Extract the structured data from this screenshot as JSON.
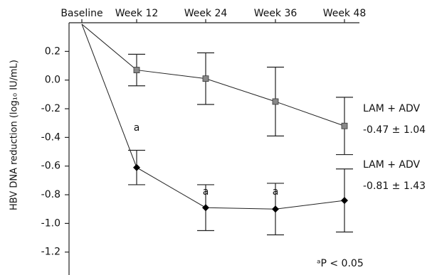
{
  "chart_data": {
    "type": "line",
    "y_label": "HBV DNA reduction (log₁₀ IU/mL)",
    "categories": [
      "Baseline",
      "Week 12",
      "Week 24",
      "Week 36",
      "Week 48"
    ],
    "ylim": [
      -1.35,
      0.4
    ],
    "yticks": [
      0.2,
      {
        "value": 0,
        "label": "0.0"
      },
      -0.2,
      -0.4,
      -0.6,
      -0.8,
      {
        "value": -1,
        "label": "-1.0"
      },
      -1.2
    ],
    "series": [
      {
        "name": "LAM + ADV",
        "marker": "square",
        "color": "#888888",
        "values": [
          0.39,
          0.07,
          0.01,
          -0.15,
          -0.32
        ],
        "errors": [
          null,
          0.11,
          0.18,
          0.24,
          0.2
        ]
      },
      {
        "name": "LAM + ADV",
        "marker": "diamond",
        "color": "#000000",
        "values": [
          0.39,
          -0.61,
          -0.89,
          -0.9,
          -0.84
        ],
        "errors": [
          null,
          0.12,
          0.16,
          0.18,
          0.22
        ]
      }
    ],
    "series_notes": [
      "-0.47 ± 1.04",
      "-0.81 ± 1.43"
    ],
    "annotations": [
      "a",
      "a",
      "a"
    ],
    "footnote": "ᵃP < 0.05"
  }
}
